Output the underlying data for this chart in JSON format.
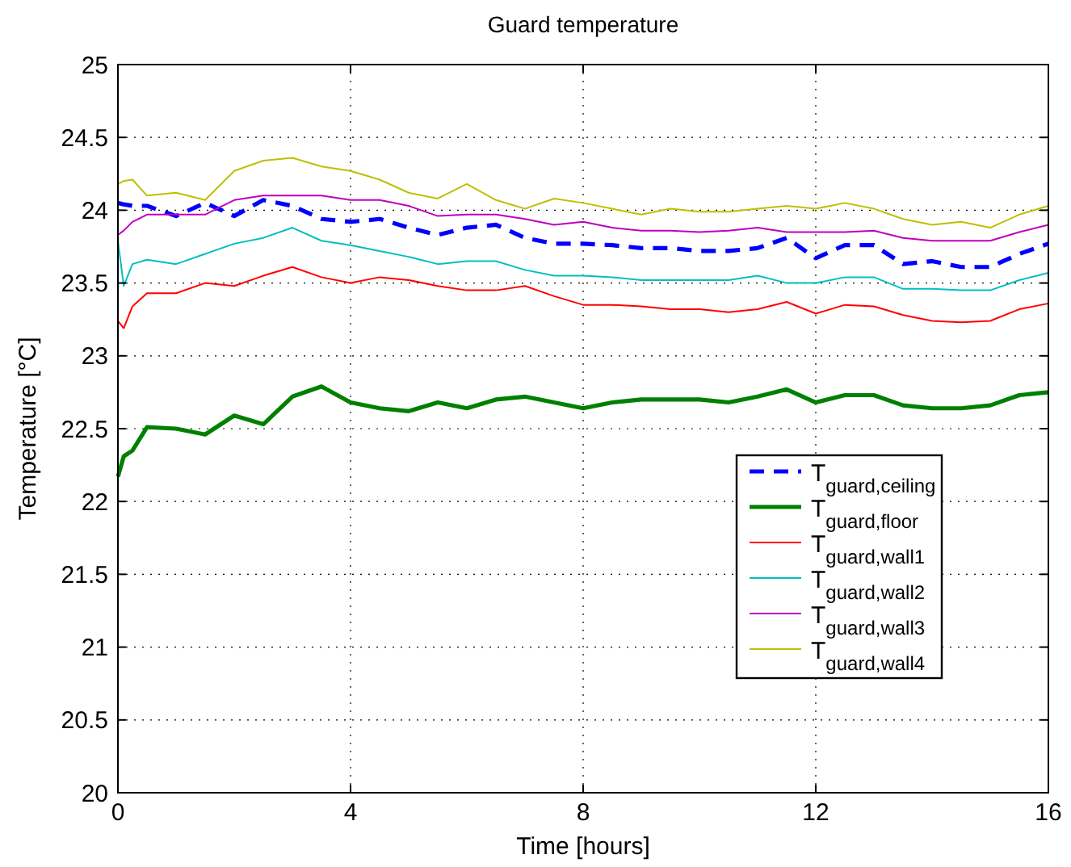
{
  "chart_data": {
    "type": "line",
    "title": "Guard temperature",
    "xlabel": "Time [hours]",
    "ylabel": "Temperature [°C]",
    "x": [
      0,
      0.1,
      0.25,
      0.5,
      1,
      1.5,
      2,
      2.5,
      3,
      3.5,
      4,
      4.5,
      5,
      5.5,
      6,
      6.5,
      7,
      7.5,
      8,
      8.5,
      9,
      9.5,
      10,
      10.5,
      11,
      11.5,
      12,
      12.5,
      13,
      13.5,
      14,
      14.5,
      15,
      15.5,
      16
    ],
    "series": [
      {
        "name": "T$_{guard,ceiling}$",
        "color": "#0000ff",
        "line_style": "dashed",
        "values": [
          24.05,
          24.04,
          24.03,
          24.03,
          23.96,
          24.05,
          23.96,
          24.07,
          24.03,
          23.94,
          23.92,
          23.94,
          23.88,
          23.83,
          23.88,
          23.9,
          23.81,
          23.77,
          23.77,
          23.76,
          23.74,
          23.74,
          23.72,
          23.72,
          23.74,
          23.81,
          23.67,
          23.76,
          23.76,
          23.63,
          23.65,
          23.61,
          23.61,
          23.7,
          23.77
        ]
      },
      {
        "name": "T$_{guard,floor}$",
        "color": "#008000",
        "line_style": "solid",
        "values": [
          22.17,
          22.31,
          22.35,
          22.51,
          22.5,
          22.46,
          22.59,
          22.53,
          22.72,
          22.79,
          22.68,
          22.64,
          22.62,
          22.68,
          22.64,
          22.7,
          22.72,
          22.68,
          22.64,
          22.68,
          22.7,
          22.7,
          22.7,
          22.68,
          22.72,
          22.77,
          22.68,
          22.73,
          22.73,
          22.66,
          22.64,
          22.64,
          22.66,
          22.73,
          22.75
        ]
      },
      {
        "name": "T$_{guard,wall1}$",
        "color": "#ff0000",
        "line_style": "solid",
        "values": [
          23.24,
          23.19,
          23.34,
          23.43,
          23.43,
          23.5,
          23.48,
          23.55,
          23.61,
          23.54,
          23.5,
          23.54,
          23.52,
          23.48,
          23.45,
          23.45,
          23.48,
          23.41,
          23.35,
          23.35,
          23.34,
          23.32,
          23.32,
          23.3,
          23.32,
          23.37,
          23.29,
          23.35,
          23.34,
          23.28,
          23.24,
          23.23,
          23.24,
          23.32,
          23.36
        ]
      },
      {
        "name": "T$_{guard,wall2}$",
        "color": "#00bfbf",
        "line_style": "solid",
        "values": [
          23.79,
          23.48,
          23.63,
          23.66,
          23.63,
          23.7,
          23.77,
          23.81,
          23.88,
          23.79,
          23.76,
          23.72,
          23.68,
          23.63,
          23.65,
          23.65,
          23.59,
          23.55,
          23.55,
          23.54,
          23.52,
          23.52,
          23.52,
          23.52,
          23.55,
          23.5,
          23.5,
          23.54,
          23.54,
          23.46,
          23.46,
          23.45,
          23.45,
          23.52,
          23.57
        ]
      },
      {
        "name": "T$_{guard,wall3}$",
        "color": "#bf00bf",
        "line_style": "solid",
        "values": [
          23.83,
          23.86,
          23.92,
          23.97,
          23.97,
          23.97,
          24.07,
          24.1,
          24.1,
          24.1,
          24.07,
          24.07,
          24.03,
          23.96,
          23.97,
          23.97,
          23.94,
          23.9,
          23.92,
          23.88,
          23.86,
          23.86,
          23.85,
          23.86,
          23.88,
          23.85,
          23.85,
          23.85,
          23.86,
          23.81,
          23.79,
          23.79,
          23.79,
          23.85,
          23.9
        ]
      },
      {
        "name": "T$_{guard,wall4}$",
        "color": "#bfbf00",
        "line_style": "solid",
        "values": [
          24.18,
          24.2,
          24.21,
          24.1,
          24.12,
          24.07,
          24.27,
          24.34,
          24.36,
          24.3,
          24.27,
          24.21,
          24.12,
          24.08,
          24.18,
          24.07,
          24.01,
          24.08,
          24.05,
          24.01,
          23.97,
          24.01,
          23.99,
          23.99,
          24.01,
          24.03,
          24.01,
          24.05,
          24.01,
          23.94,
          23.9,
          23.92,
          23.88,
          23.97,
          24.03
        ]
      }
    ],
    "xlim": [
      0,
      16
    ],
    "xticks": [
      0,
      4,
      8,
      12,
      16
    ],
    "ylim": [
      20,
      25
    ],
    "yticks": [
      20,
      20.5,
      21,
      21.5,
      22,
      22.5,
      23,
      23.5,
      24,
      24.5,
      25
    ],
    "grid": true,
    "legend": "right"
  }
}
